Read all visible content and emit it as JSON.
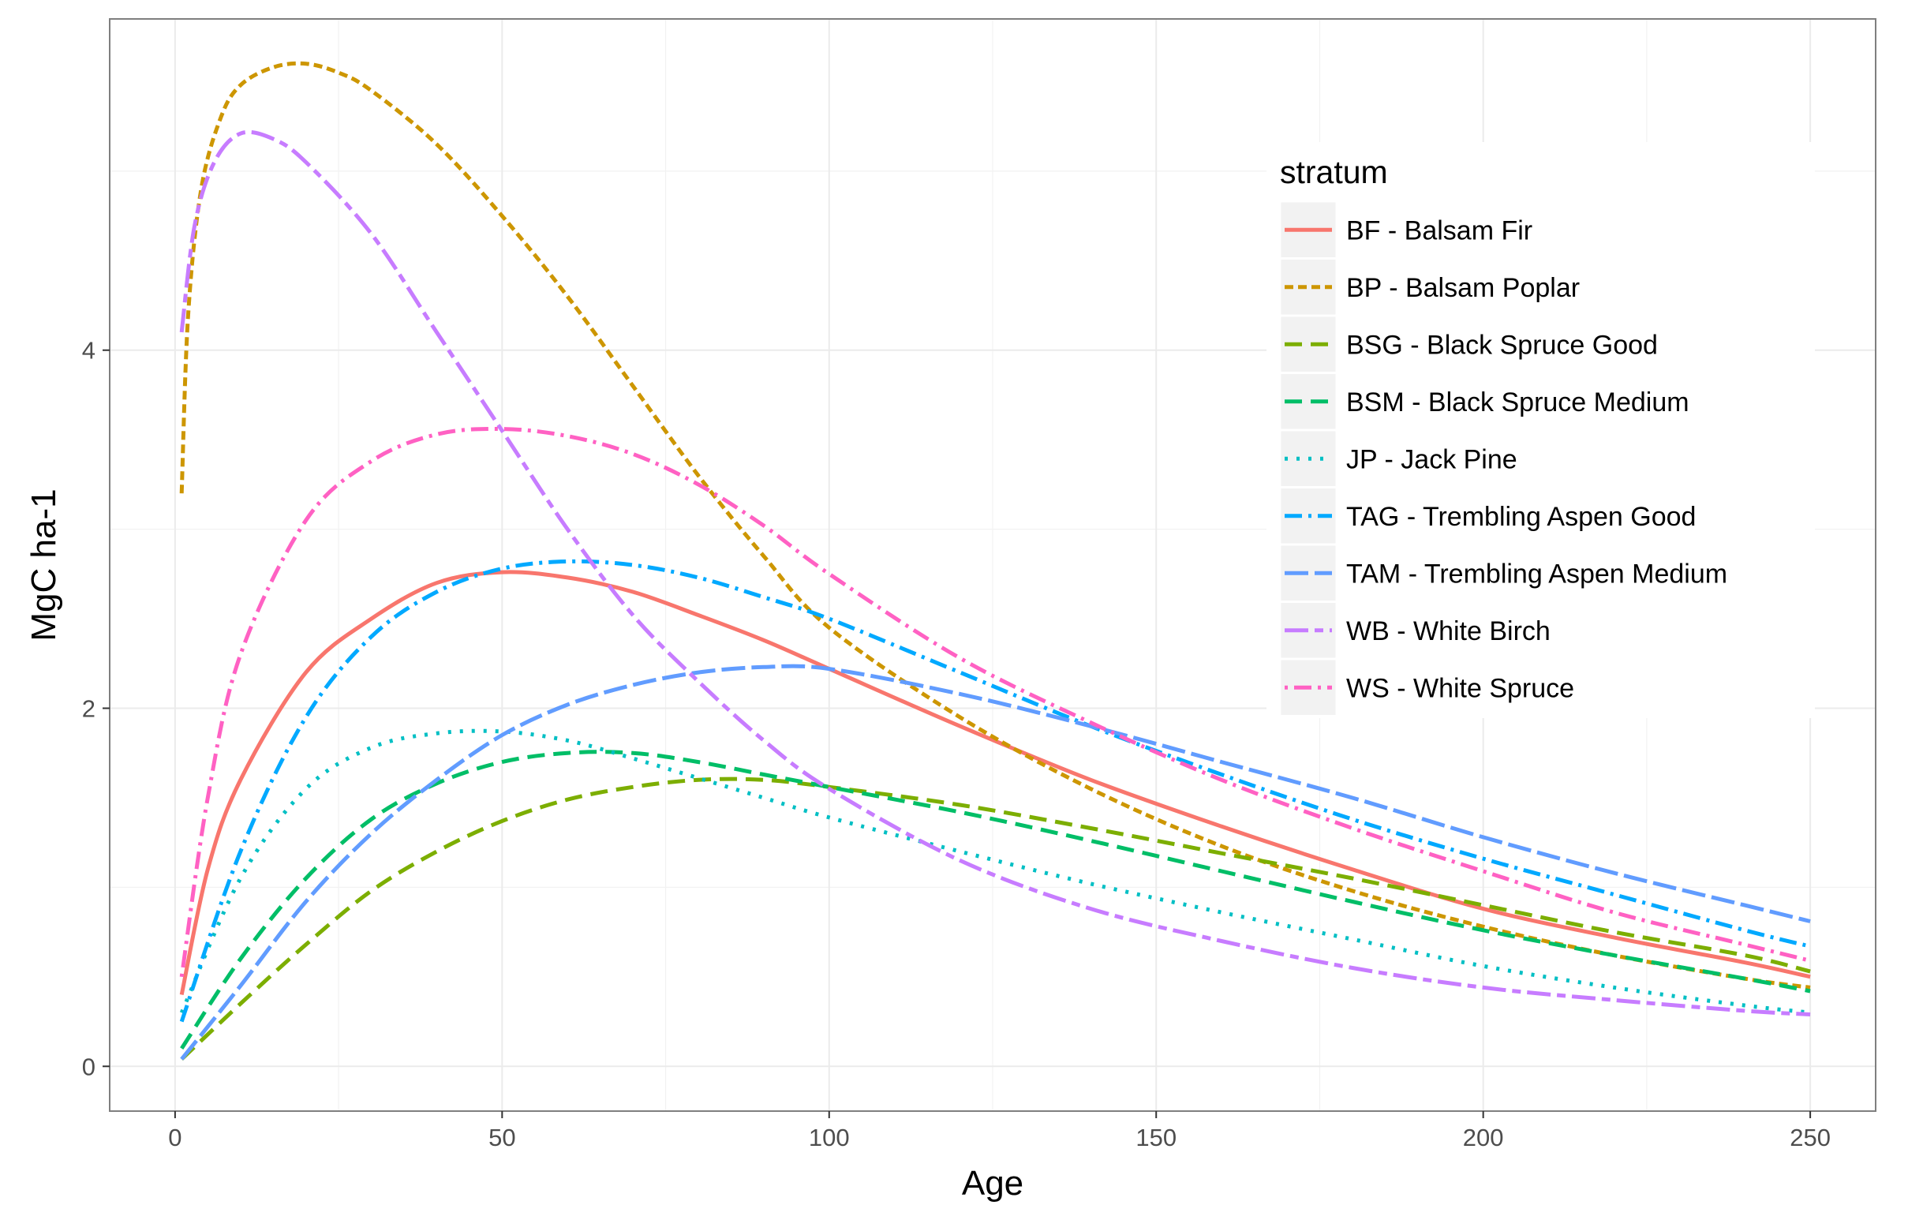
{
  "chart_data": {
    "type": "line",
    "xlabel": "Age",
    "ylabel": "MgC ha-1",
    "xlim": [
      -10,
      260
    ],
    "ylim": [
      -0.25,
      5.85
    ],
    "x_ticks": [
      0,
      50,
      100,
      150,
      200,
      250
    ],
    "y_ticks": [
      0,
      2,
      4
    ],
    "grid": true,
    "legend": {
      "title": "stratum",
      "position": "top-right inside"
    },
    "series": [
      {
        "name": "BF - Balsam Fir",
        "color": "#F8766D",
        "dash": "solid",
        "points": [
          [
            1,
            0.4
          ],
          [
            5,
            1.1
          ],
          [
            10,
            1.6
          ],
          [
            20,
            2.2
          ],
          [
            30,
            2.5
          ],
          [
            40,
            2.7
          ],
          [
            50,
            2.76
          ],
          [
            60,
            2.73
          ],
          [
            70,
            2.65
          ],
          [
            80,
            2.52
          ],
          [
            90,
            2.38
          ],
          [
            100,
            2.22
          ],
          [
            120,
            1.9
          ],
          [
            140,
            1.6
          ],
          [
            160,
            1.34
          ],
          [
            180,
            1.1
          ],
          [
            200,
            0.88
          ],
          [
            220,
            0.72
          ],
          [
            240,
            0.58
          ],
          [
            250,
            0.5
          ]
        ]
      },
      {
        "name": "BP - Balsam Poplar",
        "color": "#CD9600",
        "dash": "short-dash",
        "points": [
          [
            1,
            3.2
          ],
          [
            2,
            4.2
          ],
          [
            4,
            4.9
          ],
          [
            7,
            5.3
          ],
          [
            10,
            5.48
          ],
          [
            15,
            5.58
          ],
          [
            20,
            5.6
          ],
          [
            25,
            5.55
          ],
          [
            30,
            5.45
          ],
          [
            40,
            5.15
          ],
          [
            50,
            4.75
          ],
          [
            60,
            4.3
          ],
          [
            70,
            3.8
          ],
          [
            80,
            3.3
          ],
          [
            90,
            2.85
          ],
          [
            100,
            2.45
          ],
          [
            120,
            1.95
          ],
          [
            140,
            1.55
          ],
          [
            160,
            1.23
          ],
          [
            180,
            0.98
          ],
          [
            200,
            0.78
          ],
          [
            220,
            0.62
          ],
          [
            240,
            0.49
          ],
          [
            250,
            0.44
          ]
        ]
      },
      {
        "name": "BSG - Black Spruce Good",
        "color": "#7CAE00",
        "dash": "long-dash",
        "points": [
          [
            1,
            0.04
          ],
          [
            10,
            0.35
          ],
          [
            20,
            0.68
          ],
          [
            30,
            0.98
          ],
          [
            40,
            1.2
          ],
          [
            50,
            1.37
          ],
          [
            60,
            1.49
          ],
          [
            70,
            1.56
          ],
          [
            80,
            1.6
          ],
          [
            90,
            1.6
          ],
          [
            100,
            1.56
          ],
          [
            120,
            1.46
          ],
          [
            140,
            1.33
          ],
          [
            160,
            1.19
          ],
          [
            180,
            1.05
          ],
          [
            200,
            0.9
          ],
          [
            220,
            0.75
          ],
          [
            240,
            0.62
          ],
          [
            250,
            0.53
          ]
        ]
      },
      {
        "name": "BSM - Black Spruce Medium",
        "color": "#00BE67",
        "dash": "medium-dash",
        "points": [
          [
            1,
            0.1
          ],
          [
            10,
            0.6
          ],
          [
            20,
            1.05
          ],
          [
            30,
            1.38
          ],
          [
            40,
            1.58
          ],
          [
            50,
            1.7
          ],
          [
            60,
            1.75
          ],
          [
            70,
            1.75
          ],
          [
            80,
            1.7
          ],
          [
            90,
            1.63
          ],
          [
            100,
            1.56
          ],
          [
            120,
            1.42
          ],
          [
            140,
            1.26
          ],
          [
            160,
            1.09
          ],
          [
            180,
            0.92
          ],
          [
            200,
            0.76
          ],
          [
            220,
            0.62
          ],
          [
            240,
            0.49
          ],
          [
            250,
            0.42
          ]
        ]
      },
      {
        "name": "JP - Jack Pine",
        "color": "#00BFC4",
        "dash": "dotted",
        "points": [
          [
            1,
            0.3
          ],
          [
            10,
            1.05
          ],
          [
            20,
            1.55
          ],
          [
            30,
            1.78
          ],
          [
            40,
            1.86
          ],
          [
            50,
            1.87
          ],
          [
            60,
            1.82
          ],
          [
            70,
            1.72
          ],
          [
            80,
            1.61
          ],
          [
            90,
            1.5
          ],
          [
            100,
            1.39
          ],
          [
            120,
            1.2
          ],
          [
            140,
            1.02
          ],
          [
            160,
            0.86
          ],
          [
            180,
            0.71
          ],
          [
            200,
            0.56
          ],
          [
            220,
            0.44
          ],
          [
            240,
            0.34
          ],
          [
            250,
            0.3
          ]
        ]
      },
      {
        "name": "TAG - Trembling Aspen Good",
        "color": "#00A9FF",
        "dash": "dash-dot",
        "points": [
          [
            1,
            0.25
          ],
          [
            10,
            1.2
          ],
          [
            20,
            1.95
          ],
          [
            30,
            2.4
          ],
          [
            40,
            2.65
          ],
          [
            50,
            2.78
          ],
          [
            60,
            2.82
          ],
          [
            70,
            2.8
          ],
          [
            80,
            2.73
          ],
          [
            90,
            2.62
          ],
          [
            100,
            2.5
          ],
          [
            120,
            2.2
          ],
          [
            140,
            1.9
          ],
          [
            160,
            1.63
          ],
          [
            180,
            1.38
          ],
          [
            200,
            1.16
          ],
          [
            220,
            0.96
          ],
          [
            240,
            0.76
          ],
          [
            250,
            0.67
          ]
        ]
      },
      {
        "name": "TAM - Trembling Aspen Medium",
        "color": "#619CFF",
        "dash": "long-gap",
        "points": [
          [
            1,
            0.04
          ],
          [
            10,
            0.45
          ],
          [
            20,
            0.92
          ],
          [
            30,
            1.3
          ],
          [
            40,
            1.6
          ],
          [
            50,
            1.85
          ],
          [
            60,
            2.02
          ],
          [
            70,
            2.13
          ],
          [
            80,
            2.2
          ],
          [
            90,
            2.23
          ],
          [
            100,
            2.22
          ],
          [
            120,
            2.08
          ],
          [
            140,
            1.9
          ],
          [
            160,
            1.7
          ],
          [
            180,
            1.5
          ],
          [
            200,
            1.28
          ],
          [
            220,
            1.08
          ],
          [
            240,
            0.9
          ],
          [
            250,
            0.81
          ]
        ]
      },
      {
        "name": "WB - White Birch",
        "color": "#C77CFF",
        "dash": "long-short",
        "points": [
          [
            1,
            4.1
          ],
          [
            3,
            4.7
          ],
          [
            6,
            5.05
          ],
          [
            10,
            5.21
          ],
          [
            15,
            5.18
          ],
          [
            20,
            5.05
          ],
          [
            30,
            4.65
          ],
          [
            40,
            4.1
          ],
          [
            50,
            3.55
          ],
          [
            60,
            3.0
          ],
          [
            70,
            2.52
          ],
          [
            80,
            2.15
          ],
          [
            90,
            1.82
          ],
          [
            100,
            1.55
          ],
          [
            120,
            1.15
          ],
          [
            140,
            0.88
          ],
          [
            160,
            0.7
          ],
          [
            180,
            0.55
          ],
          [
            200,
            0.44
          ],
          [
            220,
            0.37
          ],
          [
            240,
            0.31
          ],
          [
            250,
            0.29
          ]
        ]
      },
      {
        "name": "WS - White Spruce",
        "color": "#FF61C3",
        "dash": "dot-dash",
        "points": [
          [
            1,
            0.5
          ],
          [
            5,
            1.5
          ],
          [
            10,
            2.3
          ],
          [
            20,
            3.05
          ],
          [
            30,
            3.38
          ],
          [
            40,
            3.53
          ],
          [
            50,
            3.56
          ],
          [
            60,
            3.52
          ],
          [
            70,
            3.42
          ],
          [
            80,
            3.25
          ],
          [
            90,
            3.02
          ],
          [
            100,
            2.75
          ],
          [
            120,
            2.28
          ],
          [
            140,
            1.92
          ],
          [
            160,
            1.6
          ],
          [
            180,
            1.33
          ],
          [
            200,
            1.09
          ],
          [
            220,
            0.86
          ],
          [
            240,
            0.68
          ],
          [
            250,
            0.59
          ]
        ]
      }
    ]
  }
}
